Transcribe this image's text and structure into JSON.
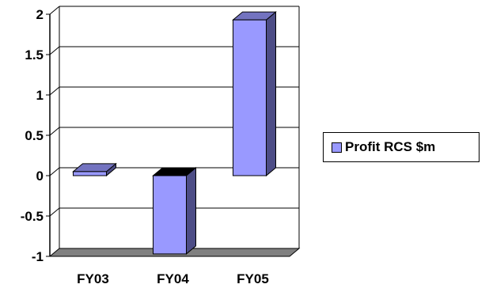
{
  "chart_data": {
    "type": "bar",
    "title": "",
    "xlabel": "",
    "ylabel": "",
    "categories": [
      "FY03",
      "FY04",
      "FY05"
    ],
    "series": [
      {
        "name": "Profit RCS $m",
        "values": [
          0.05,
          -0.97,
          1.93
        ]
      }
    ],
    "ylim": [
      -1,
      2
    ],
    "yticks": [
      "2",
      "1.5",
      "1",
      "0.5",
      "0",
      "-0.5",
      "-1"
    ],
    "ytick_values": [
      2,
      1.5,
      1,
      0.5,
      0,
      -0.5,
      -1
    ],
    "grid": true,
    "legend_position": "right",
    "three_d": true,
    "colors": {
      "bar_front": "#9999ff",
      "bar_side": "#4d4d86",
      "bar_top": "#7373c0",
      "floor": "#808080",
      "grid": "#000000",
      "axis": "#000000"
    }
  }
}
